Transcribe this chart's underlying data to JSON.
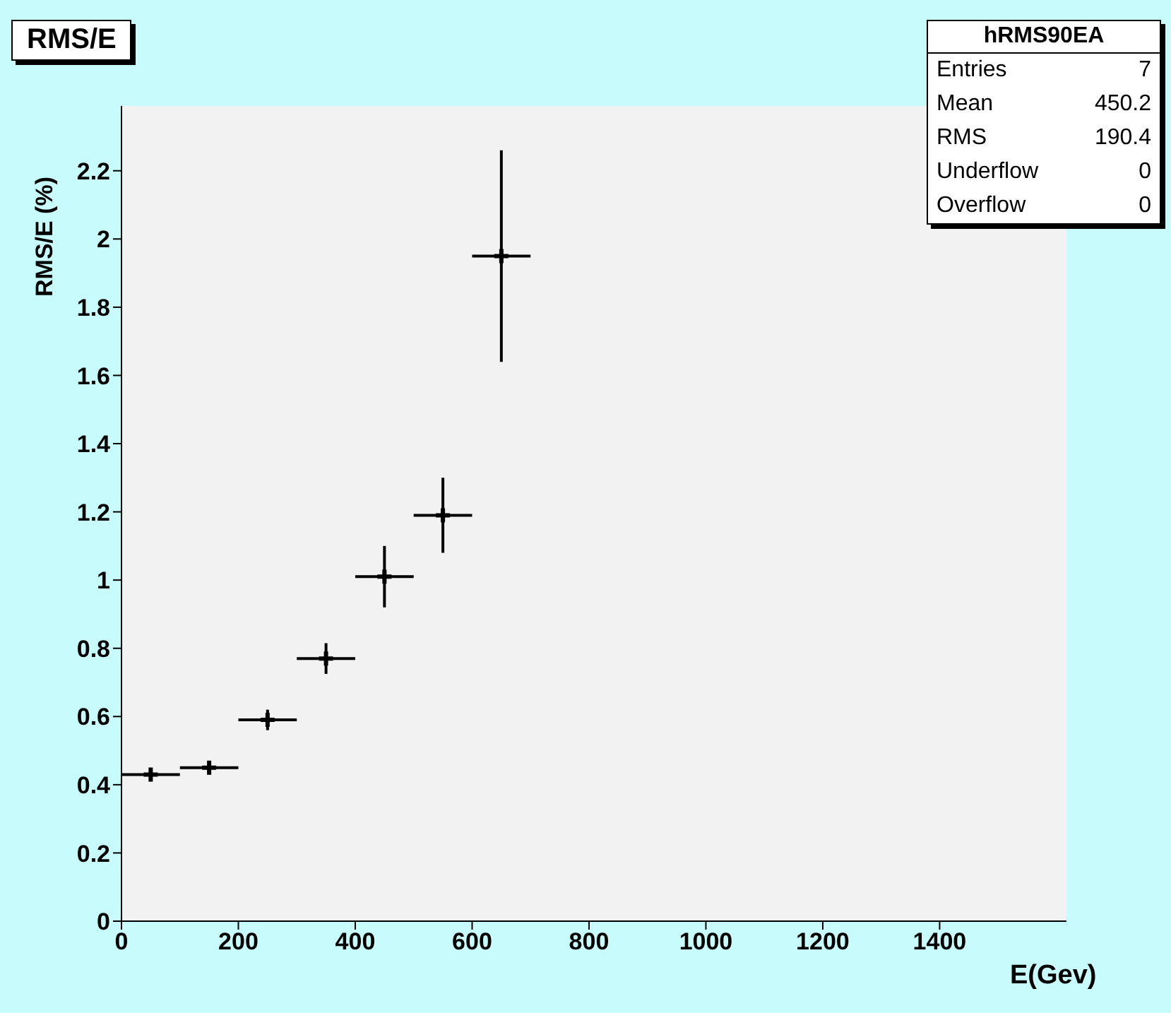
{
  "chart_data": {
    "type": "scatter",
    "title": "RMS/E",
    "xlabel": "E(Gev)",
    "ylabel": "RMS/E (%)",
    "x": [
      50,
      150,
      250,
      350,
      450,
      550,
      650
    ],
    "series": [
      {
        "color": "#000000",
        "values": [
          0.43,
          0.45,
          0.59,
          0.77,
          1.01,
          1.19,
          1.95
        ],
        "errors": [
          0.01,
          0.015,
          0.03,
          0.045,
          0.09,
          0.11,
          0.31
        ],
        "xerrors": [
          50,
          50,
          50,
          50,
          50,
          50,
          50
        ]
      }
    ],
    "xlim": [
      0,
      1617
    ],
    "xticks": [
      0,
      200,
      400,
      600,
      800,
      1000,
      1200,
      1400
    ],
    "ylim": [
      0,
      2.39
    ],
    "yticks": [
      0,
      0.2,
      0.4,
      0.6,
      0.8,
      1,
      1.2,
      1.4,
      1.6,
      1.8,
      2,
      2.2
    ],
    "marker": "cross",
    "grid": false,
    "legend": false,
    "annotations": [
      "hRMS90EA",
      "Entries",
      "7",
      "Mean",
      "450.2",
      "RMS",
      "190.4",
      "Underflow",
      "0",
      "Overflow",
      "0"
    ]
  }
}
